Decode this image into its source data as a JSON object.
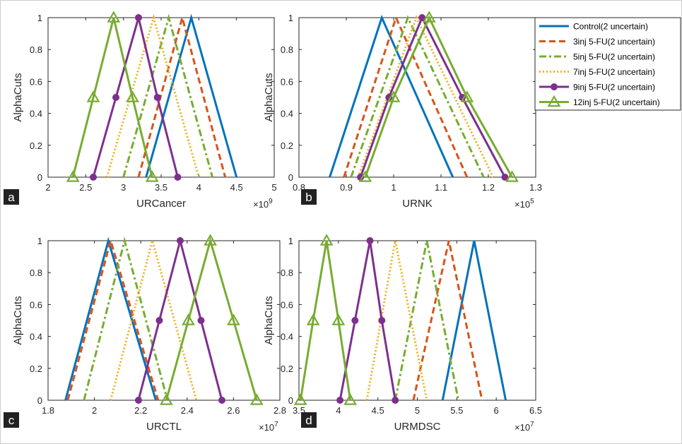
{
  "legend": {
    "entries": [
      {
        "label": "Control(2 uncertain)",
        "color": "#0072BD",
        "dash": "solid",
        "marker": "none"
      },
      {
        "label": "3inj 5-FU(2 uncertain)",
        "color": "#D95319",
        "dash": "dashed",
        "marker": "none"
      },
      {
        "label": "5inj 5-FU(2 uncertain)",
        "color": "#77AC30",
        "dash": "dashdot",
        "marker": "none"
      },
      {
        "label": "7inj 5-FU(2 uncertain)",
        "color": "#EDB120",
        "dash": "dotted",
        "marker": "none"
      },
      {
        "label": "9inj 5-FU(2 uncertain)",
        "color": "#7E2F8E",
        "dash": "solid",
        "marker": "circle"
      },
      {
        "label": "12inj 5-FU(2 uncertain)",
        "color": "#77AC30",
        "dash": "solid",
        "marker": "triangle"
      }
    ]
  },
  "chart_data": [
    {
      "type": "line",
      "panel_letter": "a",
      "xlabel": "URCancer",
      "ylabel": "AlphaCuts",
      "exponent_label": "×10",
      "exponent_power": "9",
      "xlim": [
        2,
        5
      ],
      "ylim": [
        0,
        1
      ],
      "xticks": [
        2,
        2.5,
        3,
        3.5,
        4,
        4.5,
        5
      ],
      "xtick_labels": [
        "2",
        "2.5",
        "3",
        "3.5",
        "4",
        "4.5",
        "5"
      ],
      "yticks": [
        0,
        0.2,
        0.4,
        0.6,
        0.8,
        1
      ],
      "ytick_labels": [
        "0",
        "0.2",
        "0.4",
        "0.6",
        "0.8",
        "1"
      ],
      "series": [
        {
          "name": "Control(2 uncertain)",
          "x": [
            3.3,
            3.9,
            4.5
          ],
          "y": [
            0,
            1,
            0
          ]
        },
        {
          "name": "3inj 5-FU(2 uncertain)",
          "x": [
            3.2,
            3.78,
            4.35
          ],
          "y": [
            0,
            1,
            0
          ]
        },
        {
          "name": "5inj 5-FU(2 uncertain)",
          "x": [
            3.0,
            3.6,
            4.18
          ],
          "y": [
            0,
            1,
            0
          ]
        },
        {
          "name": "7inj 5-FU(2 uncertain)",
          "x": [
            2.78,
            3.4,
            4.0
          ],
          "y": [
            0,
            1,
            0
          ]
        },
        {
          "name": "9inj 5-FU(2 uncertain)",
          "x": [
            2.6,
            2.9,
            3.2,
            3.45,
            3.72
          ],
          "y": [
            0,
            0.5,
            1,
            0.5,
            0
          ]
        },
        {
          "name": "12inj 5-FU(2 uncertain)",
          "x": [
            2.33,
            2.6,
            2.87,
            3.12,
            3.38
          ],
          "y": [
            0,
            0.5,
            1,
            0.5,
            0
          ]
        }
      ]
    },
    {
      "type": "line",
      "panel_letter": "b",
      "xlabel": "URNK",
      "ylabel": "AlphaCuts",
      "exponent_label": "×10",
      "exponent_power": "5",
      "xlim": [
        0.8,
        1.3
      ],
      "ylim": [
        0,
        1
      ],
      "xticks": [
        0.8,
        0.9,
        1.0,
        1.1,
        1.2,
        1.3
      ],
      "xtick_labels": [
        "0.8",
        "0.9",
        "1",
        "1.1",
        "1.2",
        "1.3"
      ],
      "yticks": [
        0,
        0.2,
        0.4,
        0.6,
        0.8,
        1
      ],
      "ytick_labels": [
        "0",
        "0.2",
        "0.4",
        "0.6",
        "0.8",
        "1"
      ],
      "series": [
        {
          "name": "Control(2 uncertain)",
          "x": [
            0.865,
            0.975,
            1.125
          ],
          "y": [
            0,
            1,
            0
          ]
        },
        {
          "name": "3inj 5-FU(2 uncertain)",
          "x": [
            0.895,
            1.005,
            1.155
          ],
          "y": [
            0,
            1,
            0
          ]
        },
        {
          "name": "5inj 5-FU(2 uncertain)",
          "x": [
            0.91,
            1.03,
            1.19
          ],
          "y": [
            0,
            1,
            0
          ]
        },
        {
          "name": "7inj 5-FU(2 uncertain)",
          "x": [
            0.925,
            1.048,
            1.21
          ],
          "y": [
            0,
            1,
            0
          ]
        },
        {
          "name": "9inj 5-FU(2 uncertain)",
          "x": [
            0.93,
            0.99,
            1.06,
            1.145,
            1.235
          ],
          "y": [
            0,
            0.5,
            1,
            0.5,
            0
          ]
        },
        {
          "name": "12inj 5-FU(2 uncertain)",
          "x": [
            0.94,
            1.0,
            1.075,
            1.155,
            1.25
          ],
          "y": [
            0,
            0.5,
            1,
            0.5,
            0
          ]
        }
      ]
    },
    {
      "type": "line",
      "panel_letter": "c",
      "xlabel": "URCTL",
      "ylabel": "AlphaCuts",
      "exponent_label": "×10",
      "exponent_power": "7",
      "xlim": [
        1.8,
        2.8
      ],
      "ylim": [
        0,
        1
      ],
      "xticks": [
        1.8,
        2.0,
        2.2,
        2.4,
        2.6,
        2.8
      ],
      "xtick_labels": [
        "1.8",
        "2",
        "2.2",
        "2.4",
        "2.6",
        "2.8"
      ],
      "yticks": [
        0,
        0.2,
        0.4,
        0.6,
        0.8,
        1
      ],
      "ytick_labels": [
        "0",
        "0.2",
        "0.4",
        "0.6",
        "0.8",
        "1"
      ],
      "series": [
        {
          "name": "Control(2 uncertain)",
          "x": [
            1.875,
            2.06,
            2.265
          ],
          "y": [
            0,
            1,
            0
          ]
        },
        {
          "name": "3inj 5-FU(2 uncertain)",
          "x": [
            1.885,
            2.07,
            2.275
          ],
          "y": [
            0,
            1,
            0
          ]
        },
        {
          "name": "5inj 5-FU(2 uncertain)",
          "x": [
            1.955,
            2.13,
            2.315
          ],
          "y": [
            0,
            1,
            0
          ]
        },
        {
          "name": "7inj 5-FU(2 uncertain)",
          "x": [
            2.07,
            2.25,
            2.44
          ],
          "y": [
            0,
            1,
            0
          ]
        },
        {
          "name": "9inj 5-FU(2 uncertain)",
          "x": [
            2.19,
            2.28,
            2.37,
            2.46,
            2.55
          ],
          "y": [
            0,
            0.5,
            1,
            0.5,
            0
          ]
        },
        {
          "name": "12inj 5-FU(2 uncertain)",
          "x": [
            2.31,
            2.405,
            2.5,
            2.6,
            2.7
          ],
          "y": [
            0,
            0.5,
            1,
            0.5,
            0
          ]
        }
      ]
    },
    {
      "type": "line",
      "panel_letter": "d",
      "xlabel": "URMDSC",
      "ylabel": "AlphaCuts",
      "exponent_label": "×10",
      "exponent_power": "7",
      "xlim": [
        3.5,
        6.5
      ],
      "ylim": [
        0,
        1
      ],
      "xticks": [
        3.5,
        4,
        4.5,
        5,
        5.5,
        6,
        6.5
      ],
      "xtick_labels": [
        "3.5",
        "4",
        "4.5",
        "5",
        "5.5",
        "6",
        "6.5"
      ],
      "yticks": [
        0,
        0.2,
        0.4,
        0.6,
        0.8,
        1
      ],
      "ytick_labels": [
        "0",
        "0.2",
        "0.4",
        "0.6",
        "0.8",
        "1"
      ],
      "series": [
        {
          "name": "Control(2 uncertain)",
          "x": [
            5.32,
            5.72,
            6.12
          ],
          "y": [
            0,
            1,
            0
          ]
        },
        {
          "name": "3inj 5-FU(2 uncertain)",
          "x": [
            4.95,
            5.4,
            5.82
          ],
          "y": [
            0,
            1,
            0
          ]
        },
        {
          "name": "5inj 5-FU(2 uncertain)",
          "x": [
            4.72,
            5.12,
            5.52
          ],
          "y": [
            0,
            1,
            0
          ]
        },
        {
          "name": "7inj 5-FU(2 uncertain)",
          "x": [
            4.36,
            4.72,
            5.12
          ],
          "y": [
            0,
            1,
            0
          ]
        },
        {
          "name": "9inj 5-FU(2 uncertain)",
          "x": [
            4.02,
            4.21,
            4.4,
            4.55,
            4.72
          ],
          "y": [
            0,
            0.5,
            1,
            0.5,
            0
          ]
        },
        {
          "name": "12inj 5-FU(2 uncertain)",
          "x": [
            3.52,
            3.68,
            3.85,
            4.0,
            4.15
          ],
          "y": [
            0,
            0.5,
            1,
            0.5,
            0
          ]
        }
      ]
    }
  ]
}
